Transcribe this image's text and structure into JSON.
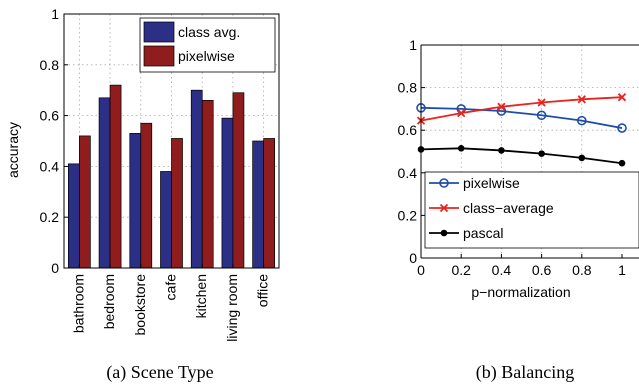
{
  "chart_data": [
    {
      "type": "bar",
      "caption": "(a) Scene Type",
      "ylabel": "accuracy",
      "ylim": [
        0,
        1
      ],
      "yticks": [
        "0",
        "0.2",
        "0.4",
        "0.6",
        "0.8",
        "1"
      ],
      "grid": "dotted",
      "legend_placement": "top-right",
      "categories": [
        "bathroom",
        "bedroom",
        "bookstore",
        "cafe",
        "kitchen",
        "living room",
        "office"
      ],
      "series": [
        {
          "name": "class avg.",
          "color": "#2b2f86",
          "values": [
            0.41,
            0.67,
            0.53,
            0.38,
            0.7,
            0.59,
            0.5
          ]
        },
        {
          "name": "pixelwise",
          "color": "#8f1d1d",
          "values": [
            0.52,
            0.72,
            0.57,
            0.51,
            0.66,
            0.69,
            0.51
          ]
        }
      ]
    },
    {
      "type": "line",
      "caption": "(b) Balancing",
      "xlabel": "p−normalization",
      "xlim": [
        0,
        1
      ],
      "ylim": [
        0,
        1
      ],
      "xticks": [
        "0",
        "0.2",
        "0.4",
        "0.6",
        "0.8",
        "1"
      ],
      "yticks": [
        "0",
        "0.2",
        "0.4",
        "0.6",
        "0.8",
        "1"
      ],
      "grid": "dotted",
      "legend_placement": "lower-right",
      "x": [
        0,
        0.2,
        0.4,
        0.6,
        0.8,
        1.0
      ],
      "series": [
        {
          "name": "pixelwise",
          "color": "#1f4ea8",
          "marker": "circle",
          "values": [
            0.705,
            0.7,
            0.69,
            0.67,
            0.645,
            0.61
          ]
        },
        {
          "name": "class−average",
          "color": "#e8241c",
          "marker": "x",
          "values": [
            0.645,
            0.68,
            0.71,
            0.73,
            0.745,
            0.755
          ]
        },
        {
          "name": "pascal",
          "color": "#000000",
          "marker": "dot",
          "values": [
            0.51,
            0.515,
            0.505,
            0.49,
            0.47,
            0.445
          ]
        }
      ]
    }
  ]
}
